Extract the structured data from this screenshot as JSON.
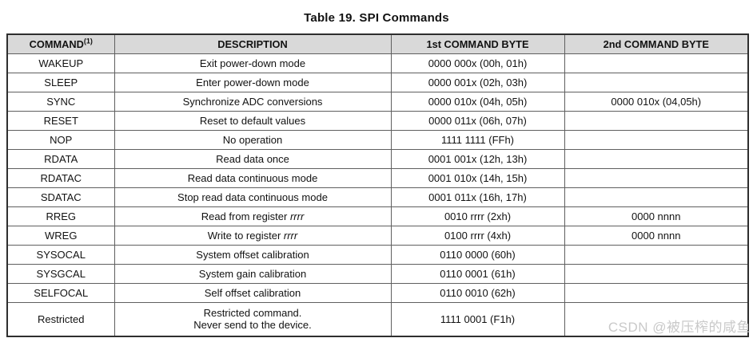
{
  "title": "Table 19. SPI Commands",
  "table": {
    "header": {
      "command": "COMMAND",
      "command_superscript": "(1)",
      "description": "DESCRIPTION",
      "byte1": "1st COMMAND BYTE",
      "byte2": "2nd COMMAND BYTE"
    },
    "rows": [
      {
        "command": "WAKEUP",
        "description": "Exit power-down mode",
        "byte1": "0000 000x (00h, 01h)",
        "byte2": ""
      },
      {
        "command": "SLEEP",
        "description": "Enter power-down mode",
        "byte1": "0000 001x (02h, 03h)",
        "byte2": ""
      },
      {
        "command": "SYNC",
        "description": "Synchronize ADC conversions",
        "byte1": "0000 010x (04h, 05h)",
        "byte2": "0000 010x (04,05h)"
      },
      {
        "command": "RESET",
        "description": "Reset to default values",
        "byte1": "0000 011x (06h, 07h)",
        "byte2": ""
      },
      {
        "command": "NOP",
        "description": "No operation",
        "byte1": "1111 1111 (FFh)",
        "byte2": ""
      },
      {
        "command": "RDATA",
        "description": "Read data once",
        "byte1": "0001 001x (12h, 13h)",
        "byte2": ""
      },
      {
        "command": "RDATAC",
        "description": "Read data continuous mode",
        "byte1": "0001 010x (14h, 15h)",
        "byte2": ""
      },
      {
        "command": "SDATAC",
        "description": "Stop read data continuous mode",
        "byte1": "0001 011x (16h, 17h)",
        "byte2": ""
      },
      {
        "command": "RREG",
        "description": "Read from register ",
        "description_italic": "rrrr",
        "byte1": "0010 rrrr (2xh)",
        "byte2": "0000 nnnn"
      },
      {
        "command": "WREG",
        "description": "Write to register ",
        "description_italic": "rrrr",
        "byte1": "0100 rrrr (4xh)",
        "byte2": "0000 nnnn"
      },
      {
        "command": "SYSOCAL",
        "description": "System offset calibration",
        "byte1": "0110 0000 (60h)",
        "byte2": ""
      },
      {
        "command": "SYSGCAL",
        "description": "System gain calibration",
        "byte1": "0110 0001 (61h)",
        "byte2": ""
      },
      {
        "command": "SELFOCAL",
        "description": "Self offset calibration",
        "byte1": "0110 0010 (62h)",
        "byte2": ""
      },
      {
        "command": "Restricted",
        "description": "Restricted command.\nNever send to the device.",
        "byte1": "1111 0001 (F1h)",
        "byte2": ""
      }
    ]
  },
  "watermark": "CSDN @被压榨的咸鱼",
  "colors": {
    "header_bg": "#d9d9d9",
    "outer_border": "#2e2e2e",
    "inner_border": "#5f5f5f",
    "text": "#121212",
    "watermark": "#c9c9c9"
  }
}
